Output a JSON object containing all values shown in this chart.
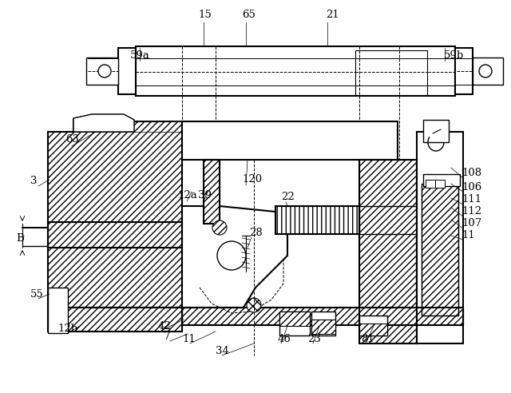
{
  "bg_color": "#ffffff",
  "line_color": "#000000",
  "labels": [
    [
      "15",
      248,
      22
    ],
    [
      "65",
      303,
      22
    ],
    [
      "21",
      408,
      22
    ],
    [
      "59a",
      163,
      73
    ],
    [
      "59b",
      556,
      73
    ],
    [
      "63",
      82,
      178
    ],
    [
      "3",
      38,
      230
    ],
    [
      "12a",
      222,
      248
    ],
    [
      "39",
      248,
      248
    ],
    [
      "120",
      303,
      228
    ],
    [
      "22",
      352,
      250
    ],
    [
      "28",
      312,
      295
    ],
    [
      "108",
      578,
      220
    ],
    [
      "106",
      578,
      238
    ],
    [
      "111",
      578,
      253
    ],
    [
      "112",
      578,
      268
    ],
    [
      "107",
      578,
      283
    ],
    [
      "11",
      578,
      298
    ],
    [
      "B",
      20,
      302
    ],
    [
      "55",
      38,
      372
    ],
    [
      "12b",
      72,
      415
    ],
    [
      "42",
      198,
      412
    ],
    [
      "7",
      205,
      425
    ],
    [
      "11",
      228,
      428
    ],
    [
      "34",
      270,
      443
    ],
    [
      "46",
      348,
      428
    ],
    [
      "23",
      385,
      428
    ],
    [
      "81",
      452,
      428
    ]
  ]
}
